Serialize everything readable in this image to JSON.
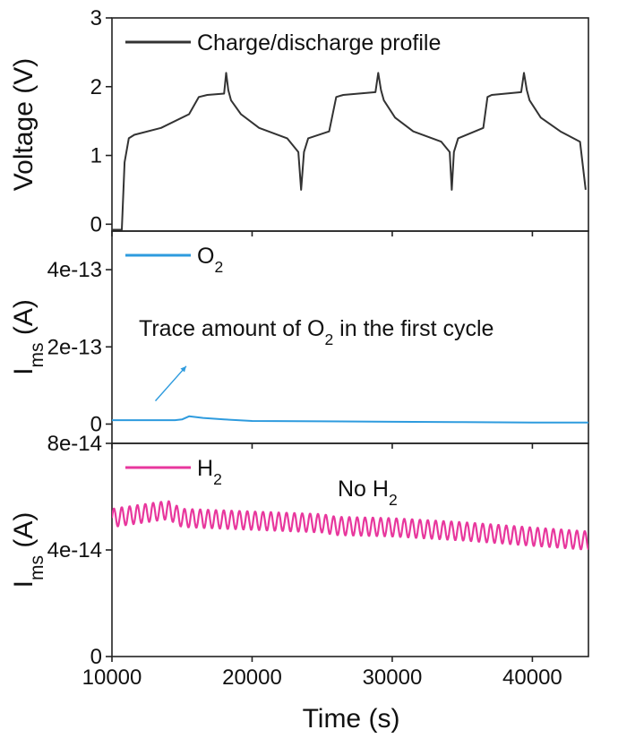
{
  "chart_data": {
    "type": "line",
    "x_axis": {
      "label": "Time (s)",
      "range": [
        10000,
        44000
      ],
      "ticks": [
        10000,
        20000,
        30000,
        40000
      ],
      "tick_labels": [
        "10000",
        "20000",
        "30000",
        "40000"
      ]
    },
    "panels": [
      {
        "id": "voltage",
        "ylabel": "Voltage (V)",
        "ylim": [
          -0.1,
          3.0
        ],
        "yticks": [
          0,
          1,
          2,
          3
        ],
        "ytick_labels": [
          "0",
          "1",
          "2",
          "3"
        ],
        "series": [
          {
            "name": "Charge/discharge profile",
            "color": "#333333",
            "x": [
              10000,
              10500,
              10700,
              10900,
              11200,
              11600,
              13500,
              15500,
              16200,
              16800,
              18000,
              18150,
              18300,
              18500,
              19200,
              20500,
              22500,
              23300,
              23500,
              23700,
              24000,
              25500,
              26000,
              26500,
              28800,
              29000,
              29200,
              29400,
              30200,
              31500,
              33500,
              34100,
              34250,
              34400,
              34700,
              36500,
              36800,
              37100,
              39200,
              39400,
              39600,
              39800,
              40600,
              42000,
              43400,
              43800
            ],
            "y": [
              -0.08,
              -0.08,
              -0.08,
              0.9,
              1.25,
              1.3,
              1.4,
              1.6,
              1.85,
              1.88,
              1.9,
              2.2,
              1.95,
              1.8,
              1.6,
              1.4,
              1.25,
              1.05,
              0.5,
              1.05,
              1.25,
              1.35,
              1.85,
              1.88,
              1.92,
              2.2,
              1.95,
              1.8,
              1.55,
              1.35,
              1.2,
              1.05,
              0.5,
              1.05,
              1.25,
              1.4,
              1.85,
              1.88,
              1.92,
              2.2,
              1.95,
              1.8,
              1.55,
              1.35,
              1.2,
              0.5
            ]
          }
        ]
      },
      {
        "id": "o2",
        "ylabel": "I",
        "ylabel_sub": "ms",
        "ylabel_suffix": " (A)",
        "ylim": [
          -5e-14,
          5e-13
        ],
        "yticks": [
          0,
          2e-13,
          4e-13
        ],
        "ytick_labels": [
          "0",
          "2e-13",
          "4e-13"
        ],
        "series": [
          {
            "name": "O",
            "name_sub": "2",
            "color": "#2e9bde",
            "x": [
              10000,
              14500,
              15000,
              15500,
              16500,
              18000,
              20000,
              25000,
              30000,
              35000,
              40000,
              44000
            ],
            "y": [
              1e-14,
              1e-14,
              1.2e-14,
              2e-14,
              1.6e-14,
              1.2e-14,
              8e-15,
              7e-15,
              6e-15,
              5e-15,
              4e-15,
              4e-15
            ]
          }
        ],
        "annotation": {
          "text_before": "Trace amount of O",
          "text_sub": "2",
          "text_after": " in the first cycle",
          "arrow_from": [
            13100,
            6e-14
          ],
          "arrow_to": [
            15300,
            1.5e-13
          ]
        }
      },
      {
        "id": "h2",
        "ylabel": "I",
        "ylabel_sub": "ms",
        "ylabel_suffix": " (A)",
        "ylim": [
          0,
          8e-14
        ],
        "yticks": [
          0,
          4e-14,
          8e-14
        ],
        "ytick_labels": [
          "0",
          "4e-14",
          "8e-14"
        ],
        "series": [
          {
            "name": "H",
            "name_sub": "2",
            "color": "#e8379d",
            "baseline_x": [
              10000,
              14000,
              15000,
              20000,
              25000,
              26000,
              30000,
              35000,
              40000,
              44000
            ],
            "baseline_y": [
              5.2e-14,
              5.5e-14,
              5.2e-14,
              5.1e-14,
              5e-14,
              4.9e-14,
              4.85e-14,
              4.7e-14,
              4.5e-14,
              4.35e-14
            ],
            "oscillation_amplitude": 3.5e-15,
            "oscillation_period": 560
          }
        ],
        "annotation": {
          "text_before": "No H",
          "text_sub": "2",
          "text_after": ""
        }
      }
    ]
  }
}
